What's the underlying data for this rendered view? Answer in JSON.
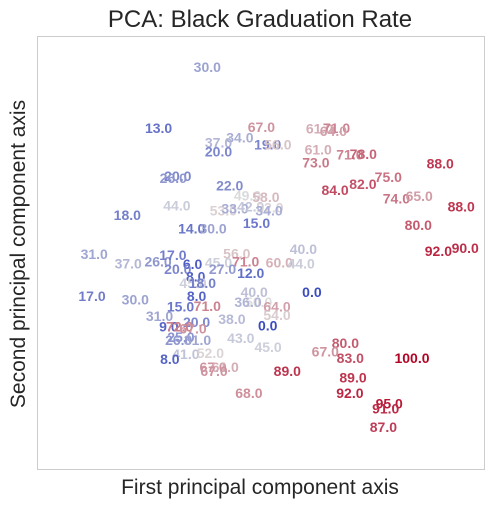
{
  "chart_data": {
    "type": "scatter",
    "title": "PCA: Black Graduation Rate",
    "xlabel": "First principal component axis",
    "ylabel": "Second principal component axis",
    "xlim": [
      0,
      100
    ],
    "ylim": [
      0,
      100
    ],
    "grid": false,
    "legend": "none",
    "color_scale": {
      "min": 0,
      "max": 100,
      "low": "#3b4cc0",
      "mid": "#dddddd",
      "high": "#b40426"
    },
    "points": [
      {
        "x": 38.1,
        "y": 92.8,
        "label": "30.0",
        "value": 30.0
      },
      {
        "x": 27.2,
        "y": 78.8,
        "label": "13.0",
        "value": 13.0
      },
      {
        "x": 50.2,
        "y": 79.0,
        "label": "67.0",
        "value": 67.0
      },
      {
        "x": 45.4,
        "y": 76.6,
        "label": "34.0",
        "value": 34.0
      },
      {
        "x": 40.6,
        "y": 75.4,
        "label": "37.0",
        "value": 37.0
      },
      {
        "x": 51.6,
        "y": 75.0,
        "label": "19.0",
        "value": 19.0
      },
      {
        "x": 53.9,
        "y": 75.0,
        "label": "56.0",
        "value": 56.0
      },
      {
        "x": 40.6,
        "y": 73.3,
        "label": "20.0",
        "value": 20.0
      },
      {
        "x": 63.2,
        "y": 78.6,
        "label": "61.0",
        "value": 61.0
      },
      {
        "x": 67.0,
        "y": 78.8,
        "label": "71.0",
        "value": 71.0
      },
      {
        "x": 66.3,
        "y": 78.1,
        "label": "64.0",
        "value": 64.0
      },
      {
        "x": 62.9,
        "y": 73.8,
        "label": "61.0",
        "value": 61.0
      },
      {
        "x": 70.0,
        "y": 72.6,
        "label": "71.0",
        "value": 71.0
      },
      {
        "x": 73.0,
        "y": 72.8,
        "label": "78.0",
        "value": 78.0
      },
      {
        "x": 62.4,
        "y": 70.8,
        "label": "73.0",
        "value": 73.0
      },
      {
        "x": 90.2,
        "y": 70.6,
        "label": "88.0",
        "value": 88.0
      },
      {
        "x": 31.5,
        "y": 67.7,
        "label": "20.0",
        "value": 20.0
      },
      {
        "x": 30.5,
        "y": 67.2,
        "label": "26.0",
        "value": 26.0
      },
      {
        "x": 43.1,
        "y": 65.5,
        "label": "22.0",
        "value": 22.0
      },
      {
        "x": 78.6,
        "y": 67.4,
        "label": "75.0",
        "value": 75.0
      },
      {
        "x": 72.9,
        "y": 65.8,
        "label": "82.0",
        "value": 82.0
      },
      {
        "x": 66.7,
        "y": 64.4,
        "label": "84.0",
        "value": 84.0
      },
      {
        "x": 47.1,
        "y": 63.2,
        "label": "49.0",
        "value": 49.0
      },
      {
        "x": 51.2,
        "y": 62.8,
        "label": "58.0",
        "value": 58.0
      },
      {
        "x": 80.4,
        "y": 62.5,
        "label": "74.0",
        "value": 74.0
      },
      {
        "x": 85.5,
        "y": 63.0,
        "label": "65.0",
        "value": 65.0
      },
      {
        "x": 94.9,
        "y": 60.6,
        "label": "88.0",
        "value": 88.0
      },
      {
        "x": 31.3,
        "y": 60.8,
        "label": "44.0",
        "value": 44.0
      },
      {
        "x": 41.7,
        "y": 59.7,
        "label": "53.0",
        "value": 53.0
      },
      {
        "x": 44.3,
        "y": 60.2,
        "label": "33.0",
        "value": 33.0
      },
      {
        "x": 47.8,
        "y": 60.6,
        "label": "42.0",
        "value": 42.0
      },
      {
        "x": 52.1,
        "y": 60.4,
        "label": "52.0",
        "value": 52.0
      },
      {
        "x": 51.9,
        "y": 59.7,
        "label": "34.0",
        "value": 34.0
      },
      {
        "x": 20.2,
        "y": 58.7,
        "label": "18.0",
        "value": 18.0
      },
      {
        "x": 49.1,
        "y": 56.8,
        "label": "15.0",
        "value": 15.0
      },
      {
        "x": 34.6,
        "y": 55.5,
        "label": "14.0",
        "value": 14.0
      },
      {
        "x": 39.4,
        "y": 55.5,
        "label": "30.0",
        "value": 30.0
      },
      {
        "x": 85.3,
        "y": 56.4,
        "label": "80.0",
        "value": 80.0
      },
      {
        "x": 95.8,
        "y": 51.0,
        "label": "90.0",
        "value": 90.0
      },
      {
        "x": 89.8,
        "y": 50.3,
        "label": "92.0",
        "value": 92.0
      },
      {
        "x": 12.8,
        "y": 49.6,
        "label": "31.0",
        "value": 31.0
      },
      {
        "x": 20.4,
        "y": 47.5,
        "label": "37.0",
        "value": 37.0
      },
      {
        "x": 27.1,
        "y": 47.9,
        "label": "26.0",
        "value": 26.0
      },
      {
        "x": 30.4,
        "y": 49.4,
        "label": "17.0",
        "value": 17.0
      },
      {
        "x": 44.7,
        "y": 49.8,
        "label": "56.0",
        "value": 56.0
      },
      {
        "x": 59.6,
        "y": 50.8,
        "label": "40.0",
        "value": 40.0
      },
      {
        "x": 46.7,
        "y": 47.9,
        "label": "71.0",
        "value": 71.0
      },
      {
        "x": 54.2,
        "y": 47.7,
        "label": "60.0",
        "value": 60.0
      },
      {
        "x": 59.1,
        "y": 47.5,
        "label": "44.0",
        "value": 44.0
      },
      {
        "x": 34.8,
        "y": 47.3,
        "label": "6.0",
        "value": 6.0
      },
      {
        "x": 40.6,
        "y": 47.7,
        "label": "45.0",
        "value": 45.0
      },
      {
        "x": 31.5,
        "y": 46.2,
        "label": "20.0",
        "value": 20.0
      },
      {
        "x": 41.5,
        "y": 46.2,
        "label": "27.0",
        "value": 27.0
      },
      {
        "x": 47.8,
        "y": 45.3,
        "label": "12.0",
        "value": 12.0
      },
      {
        "x": 35.5,
        "y": 44.5,
        "label": "8.0",
        "value": 8.0
      },
      {
        "x": 34.9,
        "y": 43.0,
        "label": "45.0",
        "value": 45.0
      },
      {
        "x": 37.0,
        "y": 43.0,
        "label": "18.0",
        "value": 18.0
      },
      {
        "x": 12.3,
        "y": 39.9,
        "label": "17.0",
        "value": 17.0
      },
      {
        "x": 22.0,
        "y": 39.2,
        "label": "30.0",
        "value": 30.0
      },
      {
        "x": 35.7,
        "y": 39.9,
        "label": "8.0",
        "value": 8.0
      },
      {
        "x": 48.6,
        "y": 40.9,
        "label": "40.0",
        "value": 40.0
      },
      {
        "x": 61.5,
        "y": 40.9,
        "label": "0.0",
        "value": 0.0
      },
      {
        "x": 49.6,
        "y": 38.6,
        "label": "50.0",
        "value": 50.0
      },
      {
        "x": 47.2,
        "y": 38.6,
        "label": "36.0",
        "value": 36.0
      },
      {
        "x": 32.1,
        "y": 37.5,
        "label": "15.0",
        "value": 15.0
      },
      {
        "x": 38.1,
        "y": 37.7,
        "label": "71.0",
        "value": 71.0
      },
      {
        "x": 53.7,
        "y": 37.5,
        "label": "64.0",
        "value": 64.0
      },
      {
        "x": 53.7,
        "y": 35.6,
        "label": "54.0",
        "value": 54.0
      },
      {
        "x": 27.4,
        "y": 35.3,
        "label": "31.0",
        "value": 31.0
      },
      {
        "x": 43.6,
        "y": 34.6,
        "label": "38.0",
        "value": 38.0
      },
      {
        "x": 35.7,
        "y": 33.9,
        "label": "20.0",
        "value": 20.0
      },
      {
        "x": 29.5,
        "y": 32.9,
        "label": "9.0",
        "value": 9.0
      },
      {
        "x": 31.9,
        "y": 32.9,
        "label": "72.0",
        "value": 72.0
      },
      {
        "x": 34.9,
        "y": 32.5,
        "label": "67.0",
        "value": 67.0
      },
      {
        "x": 51.6,
        "y": 33.1,
        "label": "0.0",
        "value": 0.0
      },
      {
        "x": 32.2,
        "y": 30.5,
        "label": "25.0",
        "value": 25.0
      },
      {
        "x": 31.7,
        "y": 29.8,
        "label": "26.0",
        "value": 26.0
      },
      {
        "x": 35.9,
        "y": 29.8,
        "label": "31.0",
        "value": 31.0
      },
      {
        "x": 45.6,
        "y": 30.3,
        "label": "43.0",
        "value": 43.0
      },
      {
        "x": 69.0,
        "y": 29.1,
        "label": "80.0",
        "value": 80.0
      },
      {
        "x": 51.7,
        "y": 28.2,
        "label": "45.0",
        "value": 45.0
      },
      {
        "x": 64.5,
        "y": 27.1,
        "label": "67.0",
        "value": 67.0
      },
      {
        "x": 33.3,
        "y": 26.6,
        "label": "41.0",
        "value": 41.0
      },
      {
        "x": 38.8,
        "y": 26.8,
        "label": "52.0",
        "value": 52.0
      },
      {
        "x": 70.1,
        "y": 25.6,
        "label": "83.0",
        "value": 83.0
      },
      {
        "x": 83.9,
        "y": 25.6,
        "label": "100.0",
        "value": 100.0
      },
      {
        "x": 29.7,
        "y": 25.4,
        "label": "8.0",
        "value": 8.0
      },
      {
        "x": 39.4,
        "y": 23.5,
        "label": "67.0",
        "value": 67.0
      },
      {
        "x": 42.1,
        "y": 23.5,
        "label": "61.0",
        "value": 61.0
      },
      {
        "x": 39.6,
        "y": 22.6,
        "label": "67.0",
        "value": 67.0
      },
      {
        "x": 56.0,
        "y": 22.6,
        "label": "89.0",
        "value": 89.0
      },
      {
        "x": 70.7,
        "y": 21.1,
        "label": "89.0",
        "value": 89.0
      },
      {
        "x": 47.4,
        "y": 17.6,
        "label": "68.0",
        "value": 68.0
      },
      {
        "x": 70.0,
        "y": 17.6,
        "label": "92.0",
        "value": 92.0
      },
      {
        "x": 78.8,
        "y": 15.1,
        "label": "95.0",
        "value": 95.0
      },
      {
        "x": 78.0,
        "y": 14.0,
        "label": "91.0",
        "value": 91.0
      },
      {
        "x": 77.5,
        "y": 9.7,
        "label": "87.0",
        "value": 87.0
      }
    ]
  }
}
